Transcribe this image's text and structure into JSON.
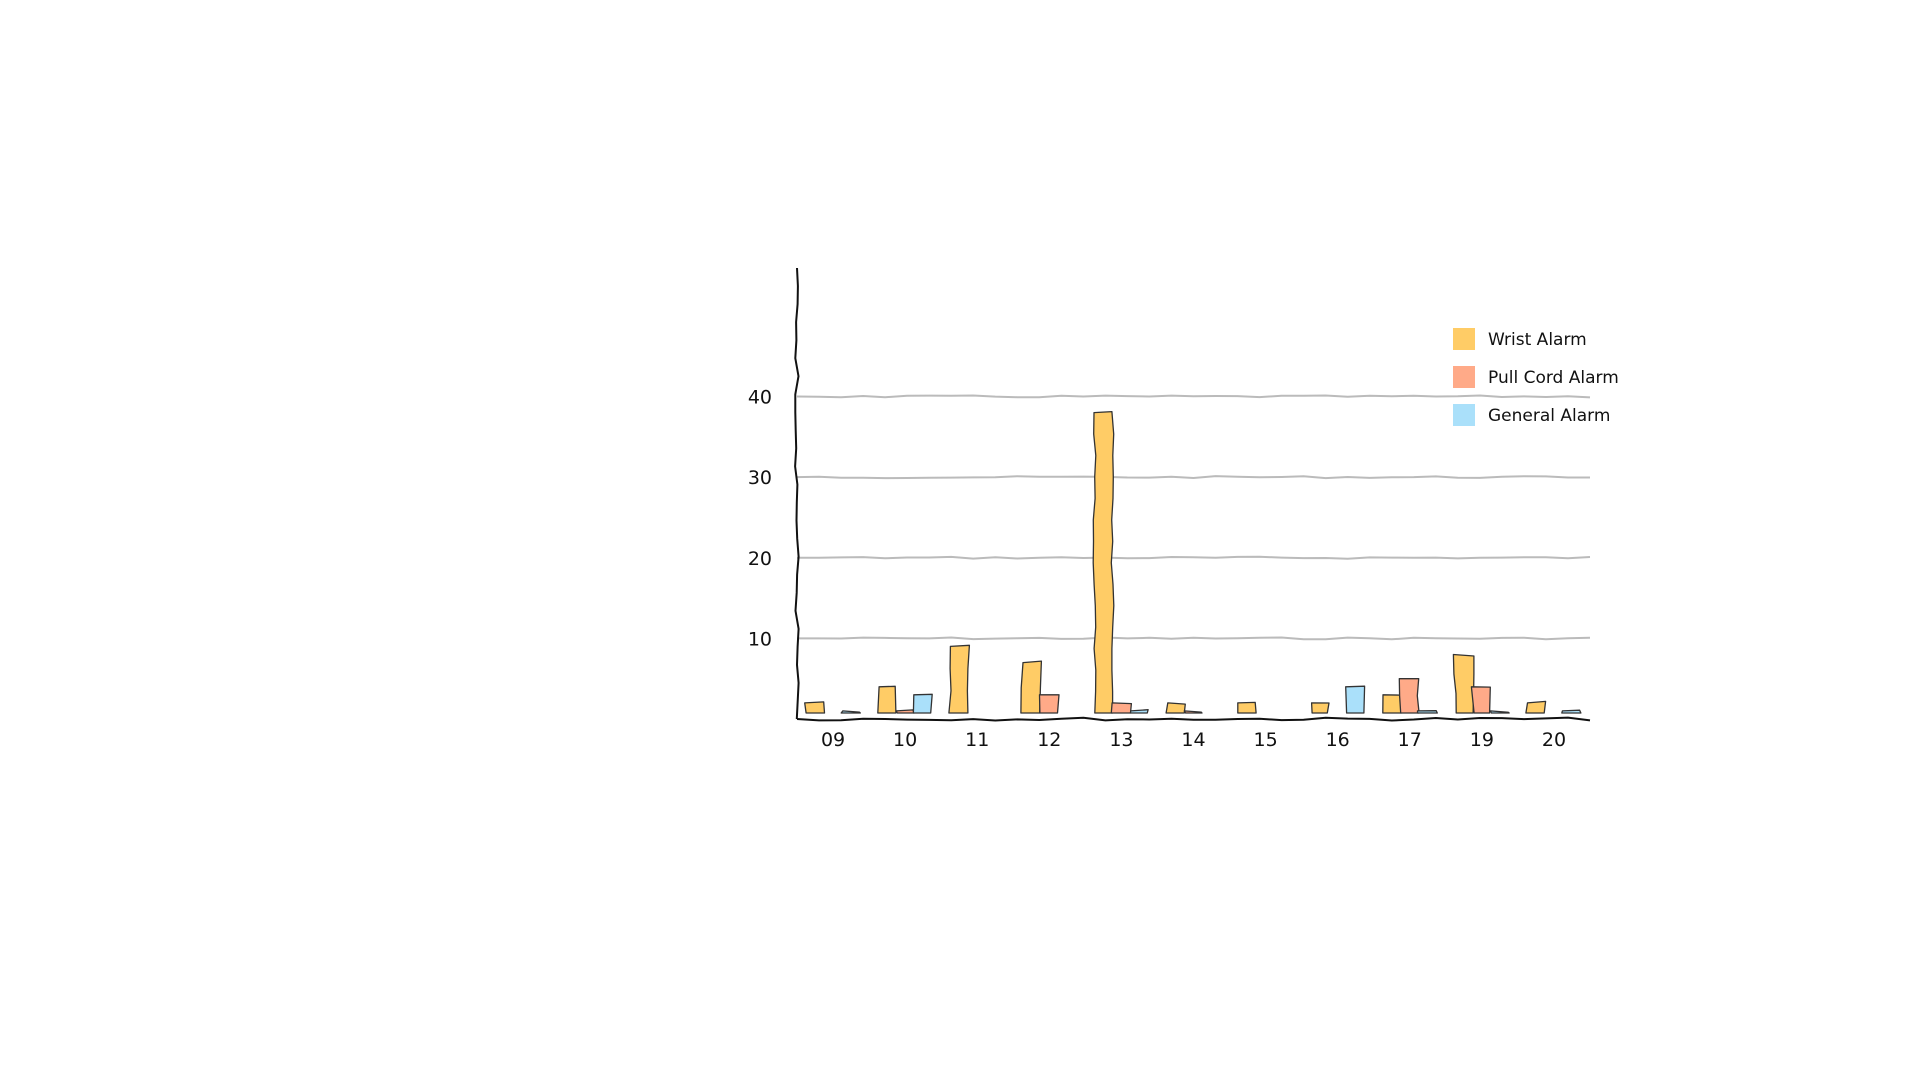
{
  "chart_data": {
    "type": "bar",
    "categories": [
      "09",
      "10",
      "11",
      "12",
      "13",
      "14",
      "15",
      "16",
      "17",
      "19",
      "20"
    ],
    "series": [
      {
        "name": "Wrist Alarm",
        "color": "#FFCC66",
        "values": [
          2,
          4,
          9,
          7,
          38,
          2,
          2,
          2,
          3,
          8,
          2
        ]
      },
      {
        "name": "Pull Cord Alarm",
        "color": "#FFAA88",
        "values": [
          0,
          1,
          0,
          3,
          2,
          1,
          0,
          0,
          5,
          4,
          0
        ]
      },
      {
        "name": "General Alarm",
        "color": "#AAE0FA",
        "values": [
          1,
          3,
          0,
          0,
          1,
          0,
          0,
          4,
          1,
          1,
          1
        ]
      }
    ],
    "title": "",
    "xlabel": "",
    "ylabel": "",
    "ylim": [
      0,
      48
    ],
    "yticks": [
      10,
      20,
      30,
      40
    ],
    "grid": true,
    "legend_position": "top-right"
  }
}
